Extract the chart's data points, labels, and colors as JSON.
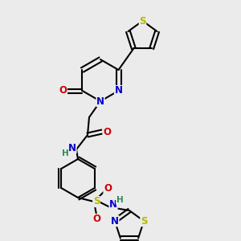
{
  "background_color": "#ebebeb",
  "bond_color": "#000000",
  "atom_colors": {
    "S": "#b8b800",
    "N": "#0000cc",
    "O": "#cc0000",
    "H": "#2e8b57",
    "C": "#000000"
  },
  "font_size_atoms": 8.5,
  "fig_size": [
    3.0,
    3.0
  ],
  "dpi": 100
}
